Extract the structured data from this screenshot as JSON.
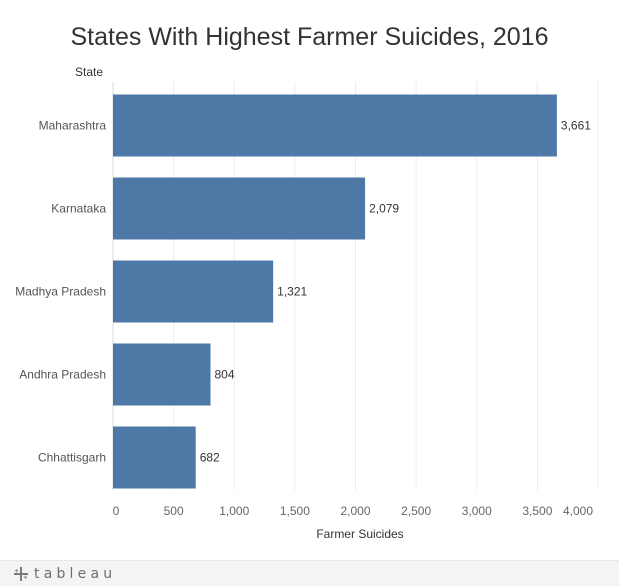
{
  "chart_data": {
    "type": "bar",
    "orientation": "horizontal",
    "title": "States With Highest Farmer Suicides, 2016",
    "ylabel": "State",
    "xlabel": "Farmer Suicides",
    "categories": [
      "Maharashtra",
      "Karnataka",
      "Madhya Pradesh",
      "Andhra Pradesh",
      "Chhattisgarh"
    ],
    "values": [
      3661,
      2079,
      1321,
      804,
      682
    ],
    "data_labels": [
      "3,661",
      "2,079",
      "1,321",
      "804",
      "682"
    ],
    "xlim": [
      0,
      4000
    ],
    "x_ticks": [
      0,
      500,
      1000,
      1500,
      2000,
      2500,
      3000,
      3500,
      4000
    ],
    "x_tick_labels": [
      "0",
      "500",
      "1,000",
      "1,500",
      "2,000",
      "2,500",
      "3,000",
      "3,500",
      "4,000"
    ],
    "grid": true,
    "bar_color": "#4e79a7"
  },
  "footer": {
    "logo_text": "tableau",
    "logo_icon": "tableau-plus-icon"
  }
}
